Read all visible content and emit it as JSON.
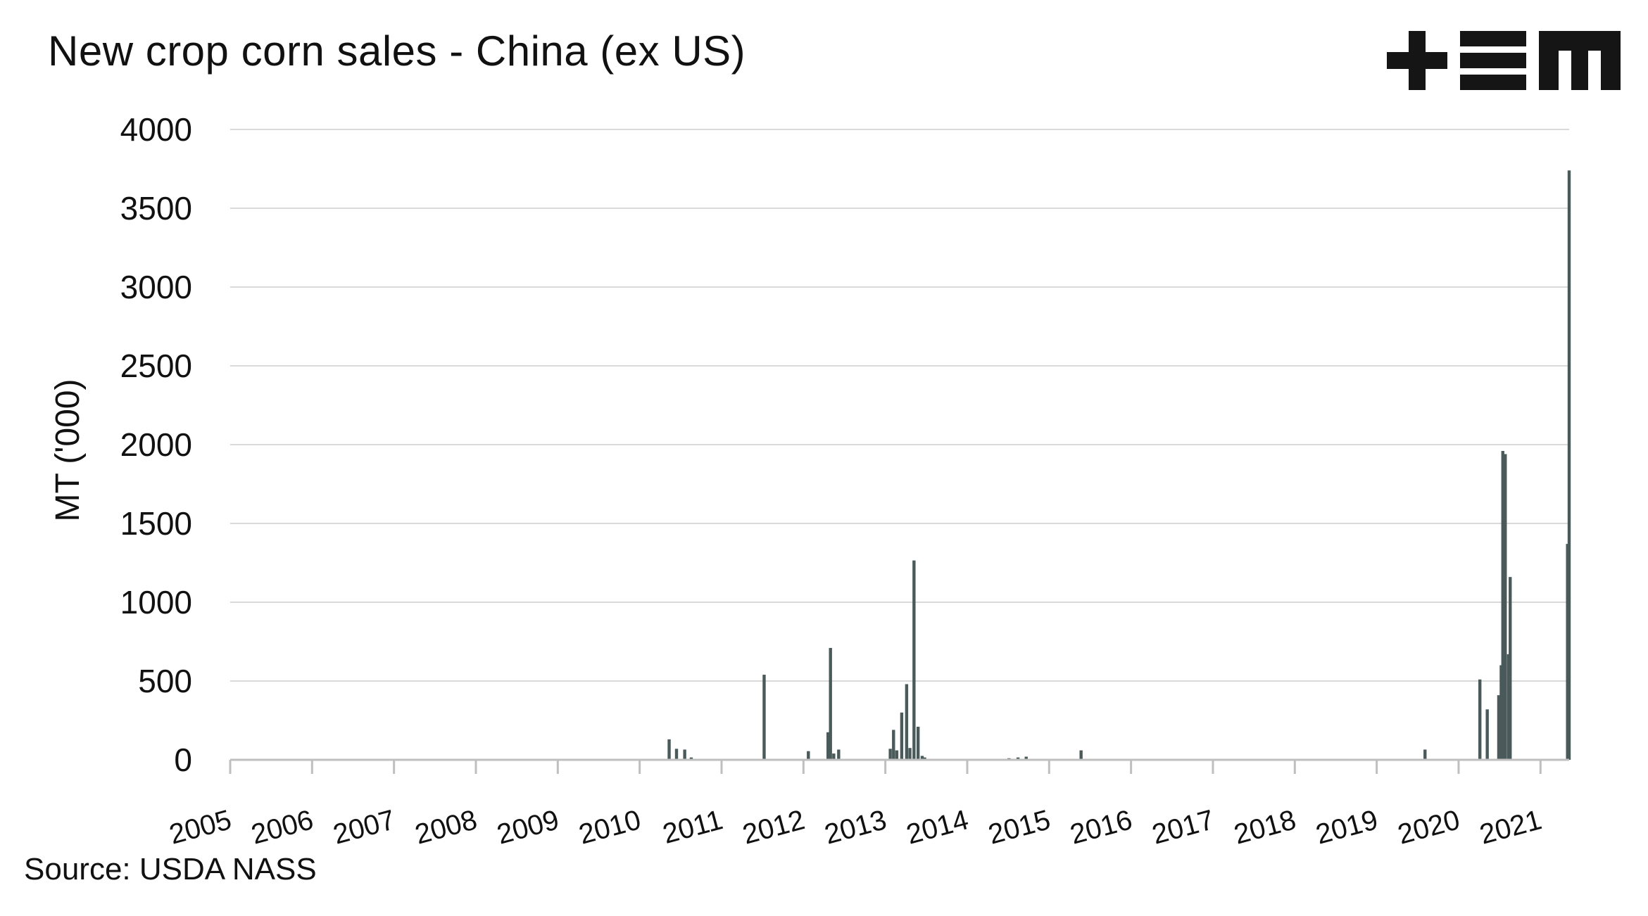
{
  "title": "New crop corn sales - China (ex US)",
  "source": "Source: USDA NASS",
  "logo": {
    "text": "+EM",
    "color": "#151515"
  },
  "colors": {
    "bar": "#4a5a5a",
    "gridline": "#d9d9d9",
    "axis": "#bfbfbf",
    "text": "#111111"
  },
  "chart_data": {
    "type": "bar",
    "title": "New crop corn sales - China (ex US)",
    "xlabel": "",
    "ylabel": "MT ('000)",
    "xlim": [
      2005,
      2021.35
    ],
    "ylim": [
      0,
      4000
    ],
    "yticks": [
      0,
      500,
      1000,
      1500,
      2000,
      2500,
      3000,
      3500,
      4000
    ],
    "xticks": [
      "2005",
      "2006",
      "2007",
      "2008",
      "2009",
      "2010",
      "2011",
      "2012",
      "2013",
      "2014",
      "2015",
      "2016",
      "2017",
      "2018",
      "2019",
      "2020",
      "2021"
    ],
    "grid": true,
    "legend": "none",
    "x": [
      2010.36,
      2010.45,
      2010.55,
      2010.63,
      2011.52,
      2012.06,
      2012.3,
      2012.33,
      2012.37,
      2012.43,
      2013.06,
      2013.1,
      2013.14,
      2013.2,
      2013.26,
      2013.3,
      2013.35,
      2013.4,
      2013.45,
      2013.48,
      2014.51,
      2014.62,
      2014.72,
      2015.39,
      2019.59,
      2020.26,
      2020.35,
      2020.49,
      2020.52,
      2020.54,
      2020.57,
      2020.61,
      2020.63,
      2021.33,
      2021.35
    ],
    "values": [
      130,
      70,
      65,
      15,
      540,
      55,
      175,
      710,
      40,
      65,
      70,
      190,
      60,
      300,
      480,
      75,
      1265,
      210,
      25,
      15,
      10,
      15,
      20,
      60,
      65,
      510,
      320,
      410,
      600,
      1960,
      1940,
      670,
      1160,
      1370,
      3740
    ]
  }
}
